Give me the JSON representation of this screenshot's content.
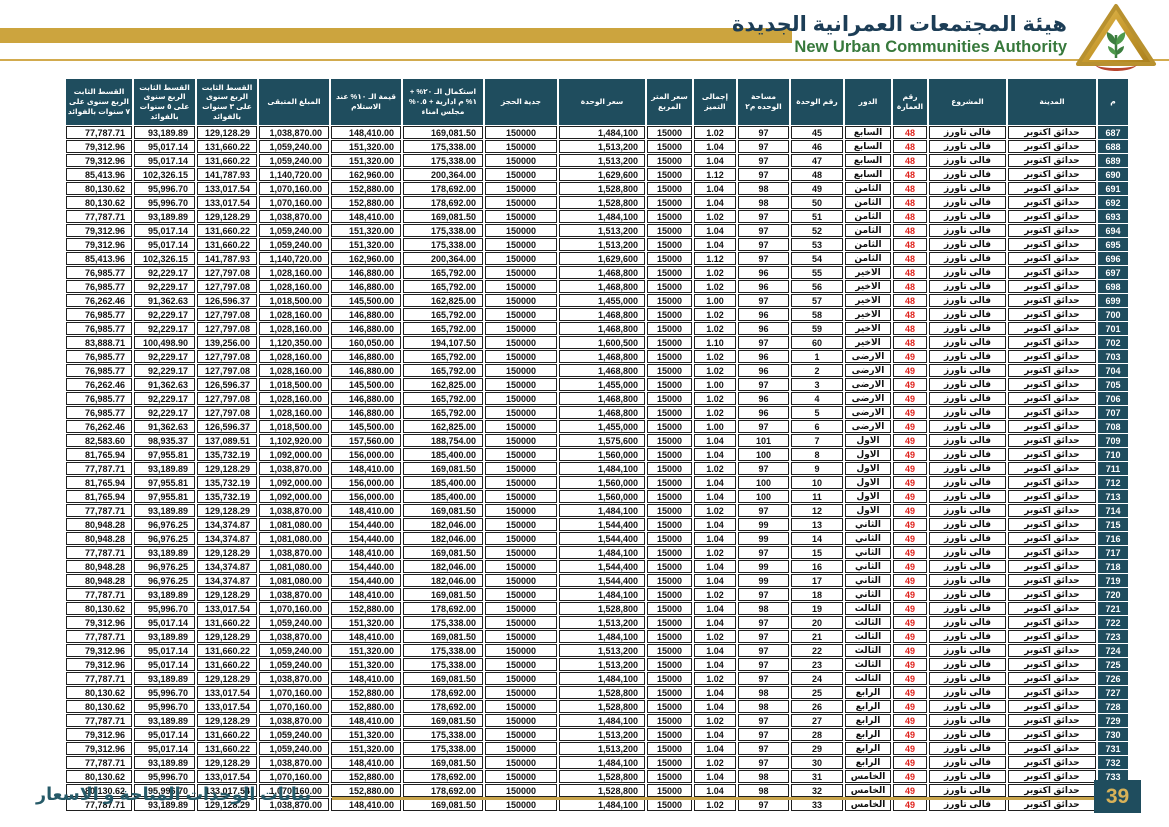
{
  "header": {
    "title_ar": "هيئة المجتمعات العمرانية الجديدة",
    "title_en": "New Urban Communities Authority"
  },
  "footer": {
    "caption": "بيانات الوحدات المتاحة و الاسعار",
    "page_number": "39"
  },
  "colors": {
    "header_teal": "#1f4d5e",
    "gold": "#cca43e",
    "brand_green": "#37793c",
    "brand_navy": "#1c3d56",
    "building_red": "#e0221c"
  },
  "table": {
    "headers": [
      "م",
      "المدينة",
      "المشروع",
      "رقم العمارة",
      "الدور",
      "رقم الوحدة",
      "مساحة الوحده م٢",
      "إجمالى التميز",
      "سعر المتر المربع",
      "سعر الوحدة",
      "جدية الحجز",
      "استكمال الـ ٢٠% + ١% م ادارية + ٠.٥% مجلس امناء",
      "قيمة الـ ١٠% عند الاستلام",
      "المبلغ المتبقى",
      "القسط الثابت الربع سنوى على ٣ سنوات بالفوائد",
      "القسط الثابت الربع سنوى على ٥ سنوات بالفوائد",
      "القسط الثابت الربع سنوى على ٧ سنوات بالفوائد"
    ],
    "col_names": [
      "serial",
      "city",
      "project",
      "building-no",
      "floor",
      "unit-no",
      "unit-area",
      "premium-factor",
      "meter-price",
      "unit-price",
      "reservation-deposit",
      "completion-20pct-cell",
      "delivery-10pct-cell",
      "remaining-amount",
      "installment-3yr",
      "installment-5yr",
      "installment-7yr"
    ],
    "constants": {
      "city": "حدائق اكتوبر",
      "project": "فالى تاورز"
    },
    "price_templates": {
      "A": [
        "97",
        "1.02",
        "15000",
        "1,484,100",
        "150000",
        "169,081.50",
        "148,410.00",
        "1,038,870.00",
        "129,128.29",
        "93,189.89",
        "77,787.71"
      ],
      "B": [
        "97",
        "1.04",
        "15000",
        "1,513,200",
        "150000",
        "175,338.00",
        "151,320.00",
        "1,059,240.00",
        "131,660.22",
        "95,017.14",
        "79,312.96"
      ],
      "C": [
        "97",
        "1.12",
        "15000",
        "1,629,600",
        "150000",
        "200,364.00",
        "162,960.00",
        "1,140,720.00",
        "141,787.93",
        "102,326.15",
        "85,413.96"
      ],
      "D": [
        "98",
        "1.04",
        "15000",
        "1,528,800",
        "150000",
        "178,692.00",
        "152,880.00",
        "1,070,160.00",
        "133,017.54",
        "95,996.70",
        "80,130.62"
      ],
      "E": [
        "96",
        "1.02",
        "15000",
        "1,468,800",
        "150000",
        "165,792.00",
        "146,880.00",
        "1,028,160.00",
        "127,797.08",
        "92,229.17",
        "76,985.77"
      ],
      "F": [
        "97",
        "1.00",
        "15000",
        "1,455,000",
        "150000",
        "162,825.00",
        "145,500.00",
        "1,018,500.00",
        "126,596.37",
        "91,362.63",
        "76,262.46"
      ],
      "G": [
        "97",
        "1.10",
        "15000",
        "1,600,500",
        "150000",
        "194,107.50",
        "160,050.00",
        "1,120,350.00",
        "139,256.00",
        "100,498.90",
        "83,888.71"
      ],
      "H": [
        "101",
        "1.04",
        "15000",
        "1,575,600",
        "150000",
        "188,754.00",
        "157,560.00",
        "1,102,920.00",
        "137,089.51",
        "98,935.37",
        "82,583.60"
      ],
      "I": [
        "100",
        "1.04",
        "15000",
        "1,560,000",
        "150000",
        "185,400.00",
        "156,000.00",
        "1,092,000.00",
        "135,732.19",
        "97,955.81",
        "81,765.94"
      ],
      "J": [
        "99",
        "1.04",
        "15000",
        "1,544,400",
        "150000",
        "182,046.00",
        "154,440.00",
        "1,081,080.00",
        "134,374.87",
        "96,976.25",
        "80,948.28"
      ]
    },
    "rows": [
      [
        "687",
        "48",
        "السابع",
        "45",
        "A"
      ],
      [
        "688",
        "48",
        "السابع",
        "46",
        "B"
      ],
      [
        "689",
        "48",
        "السابع",
        "47",
        "B"
      ],
      [
        "690",
        "48",
        "السابع",
        "48",
        "C"
      ],
      [
        "691",
        "48",
        "الثامن",
        "49",
        "D"
      ],
      [
        "692",
        "48",
        "الثامن",
        "50",
        "D"
      ],
      [
        "693",
        "48",
        "الثامن",
        "51",
        "A"
      ],
      [
        "694",
        "48",
        "الثامن",
        "52",
        "B"
      ],
      [
        "695",
        "48",
        "الثامن",
        "53",
        "B"
      ],
      [
        "696",
        "48",
        "الثامن",
        "54",
        "C"
      ],
      [
        "697",
        "48",
        "الاخير",
        "55",
        "E"
      ],
      [
        "698",
        "48",
        "الاخير",
        "56",
        "E"
      ],
      [
        "699",
        "48",
        "الاخير",
        "57",
        "F"
      ],
      [
        "700",
        "48",
        "الاخير",
        "58",
        "E"
      ],
      [
        "701",
        "48",
        "الاخير",
        "59",
        "E"
      ],
      [
        "702",
        "48",
        "الاخير",
        "60",
        "G"
      ],
      [
        "703",
        "49",
        "الارضى",
        "1",
        "E"
      ],
      [
        "704",
        "49",
        "الارضى",
        "2",
        "E"
      ],
      [
        "705",
        "49",
        "الارضى",
        "3",
        "F"
      ],
      [
        "706",
        "49",
        "الارضى",
        "4",
        "E"
      ],
      [
        "707",
        "49",
        "الارضى",
        "5",
        "E"
      ],
      [
        "708",
        "49",
        "الارضى",
        "6",
        "F"
      ],
      [
        "709",
        "49",
        "الاول",
        "7",
        "H"
      ],
      [
        "710",
        "49",
        "الاول",
        "8",
        "I"
      ],
      [
        "711",
        "49",
        "الاول",
        "9",
        "A"
      ],
      [
        "712",
        "49",
        "الاول",
        "10",
        "I"
      ],
      [
        "713",
        "49",
        "الاول",
        "11",
        "I"
      ],
      [
        "714",
        "49",
        "الاول",
        "12",
        "A"
      ],
      [
        "715",
        "49",
        "الثاني",
        "13",
        "J"
      ],
      [
        "716",
        "49",
        "الثاني",
        "14",
        "J"
      ],
      [
        "717",
        "49",
        "الثاني",
        "15",
        "A"
      ],
      [
        "718",
        "49",
        "الثاني",
        "16",
        "J"
      ],
      [
        "719",
        "49",
        "الثاني",
        "17",
        "J"
      ],
      [
        "720",
        "49",
        "الثاني",
        "18",
        "A"
      ],
      [
        "721",
        "49",
        "الثالث",
        "19",
        "D"
      ],
      [
        "722",
        "49",
        "الثالث",
        "20",
        "B"
      ],
      [
        "723",
        "49",
        "الثالث",
        "21",
        "A"
      ],
      [
        "724",
        "49",
        "الثالث",
        "22",
        "B"
      ],
      [
        "725",
        "49",
        "الثالث",
        "23",
        "B"
      ],
      [
        "726",
        "49",
        "الثالث",
        "24",
        "A"
      ],
      [
        "727",
        "49",
        "الرابع",
        "25",
        "D"
      ],
      [
        "728",
        "49",
        "الرابع",
        "26",
        "D"
      ],
      [
        "729",
        "49",
        "الرابع",
        "27",
        "A"
      ],
      [
        "730",
        "49",
        "الرابع",
        "28",
        "B"
      ],
      [
        "731",
        "49",
        "الرابع",
        "29",
        "B"
      ],
      [
        "732",
        "49",
        "الرابع",
        "30",
        "A"
      ],
      [
        "733",
        "49",
        "الخامس",
        "31",
        "D"
      ],
      [
        "734",
        "49",
        "الخامس",
        "32",
        "D"
      ],
      [
        "735",
        "49",
        "الخامس",
        "33",
        "A"
      ]
    ]
  }
}
